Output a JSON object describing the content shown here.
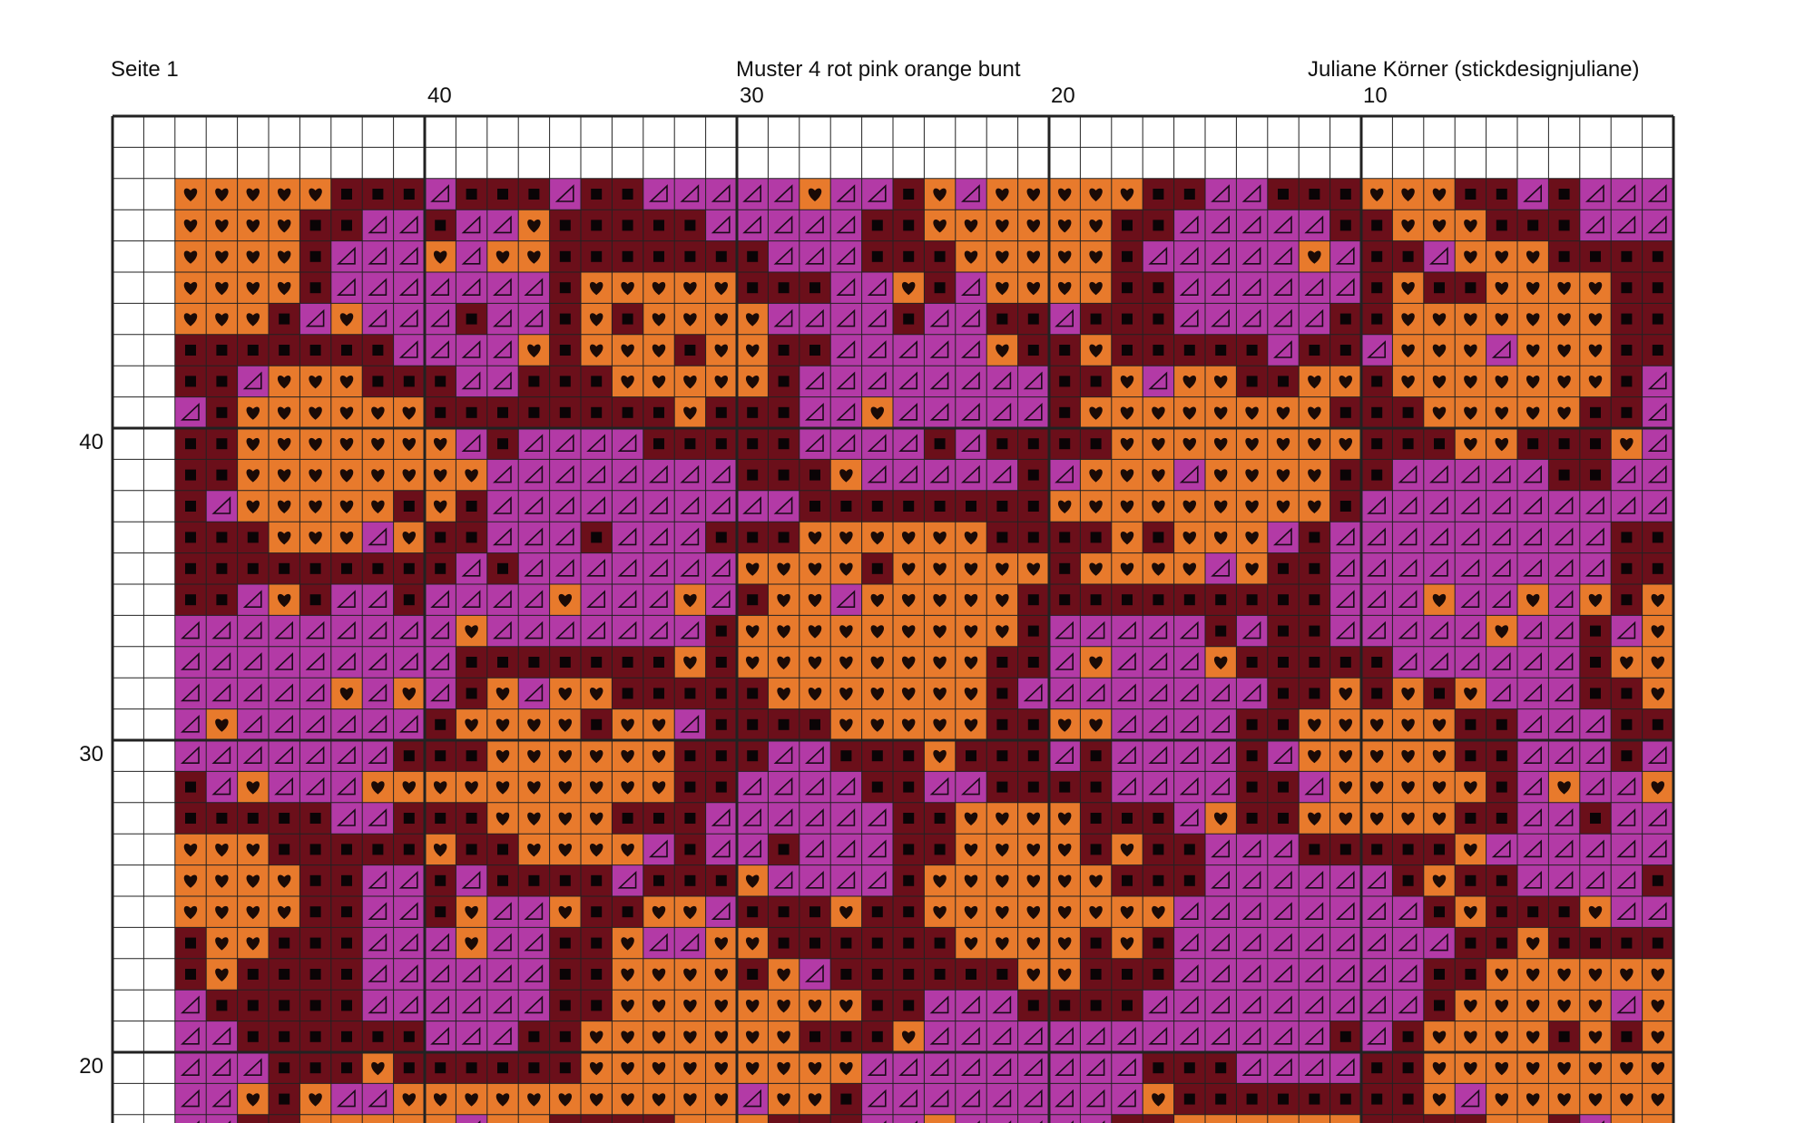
{
  "header": {
    "page_label": "Seite 1",
    "pattern_title": "Muster 4 rot pink orange bunt",
    "author": "Juliane Körner (stickdesignjuliane)"
  },
  "column_numbers": [
    "40",
    "30",
    "20",
    "10"
  ],
  "row_numbers": [
    "40",
    "30",
    "20"
  ],
  "legend_symbols": {
    "black_square": "dark-red",
    "triangle": "magenta",
    "heart": "orange"
  },
  "colors": {
    "dark_red": "#6b0f1a",
    "magenta": "#b33aa6",
    "orange": "#e87a2c",
    "grid_line": "#222222",
    "background": "#ffffff"
  }
}
